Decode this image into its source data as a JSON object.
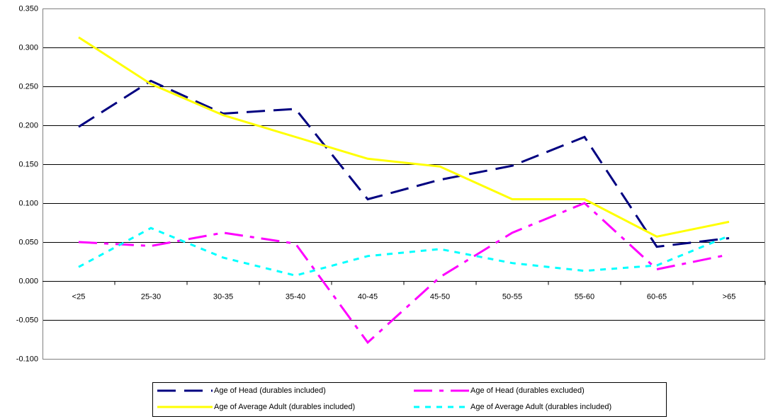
{
  "chart_data": {
    "type": "line",
    "categories": [
      "<25",
      "25-30",
      "30-35",
      "35-40",
      "40-45",
      "45-50",
      "50-55",
      "55-60",
      "60-65",
      ">65"
    ],
    "series": [
      {
        "name": "Age of Head (durables included)",
        "color": "#000080",
        "dash": "dashed",
        "values": [
          0.198,
          0.257,
          0.215,
          0.221,
          0.105,
          0.13,
          0.148,
          0.185,
          0.044,
          0.055
        ]
      },
      {
        "name": "Age of Head (durables excluded)",
        "color": "#ff00ff",
        "dash": "dash-dot",
        "values": [
          0.05,
          0.045,
          0.062,
          0.048,
          -0.079,
          0.005,
          0.062,
          0.1,
          0.015,
          0.034
        ]
      },
      {
        "name": "Age of Average Adult (durables included)",
        "color": "#ffff00",
        "dash": "solid",
        "values": [
          0.313,
          0.253,
          0.213,
          0.185,
          0.157,
          0.147,
          0.105,
          0.105,
          0.057,
          0.076
        ]
      },
      {
        "name": "Age of Average Adult (durables included)",
        "color": "#00ffff",
        "dash": "dotted",
        "values": [
          0.018,
          0.068,
          0.03,
          0.007,
          0.032,
          0.041,
          0.023,
          0.013,
          0.02,
          0.058
        ]
      }
    ],
    "ylim": [
      -0.1,
      0.35
    ],
    "yticks": [
      {
        "value": -0.1,
        "label": "-0.100"
      },
      {
        "value": -0.05,
        "label": "-0.050"
      },
      {
        "value": 0,
        "label": "0.000"
      },
      {
        "value": 0.05,
        "label": "0.050"
      },
      {
        "value": 0.1,
        "label": "0.100"
      },
      {
        "value": 0.15,
        "label": "0.150"
      },
      {
        "value": 0.2,
        "label": "0.200"
      },
      {
        "value": 0.25,
        "label": "0.250"
      },
      {
        "value": 0.3,
        "label": "0.300"
      },
      {
        "value": 0.35,
        "label": "0.350"
      }
    ],
    "grid": true
  }
}
